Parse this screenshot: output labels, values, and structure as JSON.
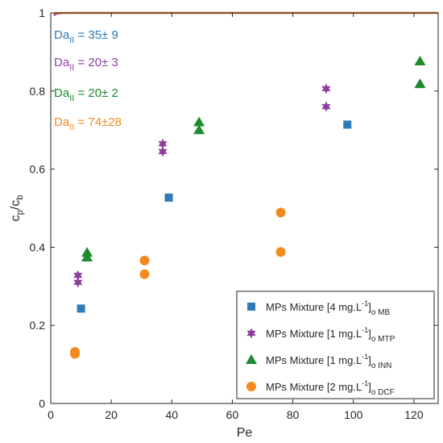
{
  "chart_data": {
    "type": "scatter",
    "xlabel": "Pe",
    "ylabel": {
      "main": "c",
      "sub1": "p",
      "slash": "/c",
      "sub2": "b"
    },
    "xlim": [
      0,
      128
    ],
    "ylim": [
      0,
      1
    ],
    "xticks": [
      0,
      20,
      40,
      60,
      80,
      100,
      120
    ],
    "yticks": [
      0,
      0.2,
      0.4,
      0.6,
      0.8,
      1
    ],
    "ytick_labels": [
      "0",
      "0.2",
      "0.4",
      "0.6",
      "0.8",
      "1"
    ],
    "legend_position": "bottom-right",
    "annotations": [
      {
        "text_main": "Da",
        "text_sub": "II",
        "text_rest": " = 35± 9",
        "color": "#2e7bb6"
      },
      {
        "text_main": "Da",
        "text_sub": "II",
        "text_rest": " = 20± 3",
        "color": "#8e3f9e"
      },
      {
        "text_main": "Da",
        "text_sub": "II",
        "text_rest": " = 20± 2",
        "color": "#1f8a2e"
      },
      {
        "text_main": "Da",
        "text_sub": "II",
        "text_rest": " = 74±28",
        "color": "#f28a1e"
      }
    ],
    "series": [
      {
        "name": "MPs Mixture [4 mg.L-1]o MB",
        "legend_main": "MPs Mixture [4 mg.L",
        "legend_sup": "-1",
        "legend_close": "]",
        "legend_sub": "o MB",
        "marker": "square",
        "color": "#2e7bb6",
        "points": [
          [
            10,
            0.243
          ],
          [
            39,
            0.527
          ],
          [
            98,
            0.714
          ]
        ],
        "curve_da": 35
      },
      {
        "name": "MPs Mixture [1 mg.L-1]o MTP",
        "legend_main": "MPs Mixture [1 mg.L",
        "legend_sup": "-1",
        "legend_close": "]",
        "legend_sub": "o MTP",
        "marker": "star",
        "color": "#8e3f9e",
        "points": [
          [
            9,
            0.31
          ],
          [
            9,
            0.328
          ],
          [
            37,
            0.645
          ],
          [
            37,
            0.665
          ],
          [
            91,
            0.76
          ],
          [
            91,
            0.806
          ]
        ],
        "curve_da": 20
      },
      {
        "name": "MPs Mixture [1 mg.L-1]o INN",
        "legend_main": "MPs Mixture [1 mg.L",
        "legend_sup": "-1",
        "legend_close": "]",
        "legend_sub": "o INN",
        "marker": "triangle",
        "color": "#1f8a2e",
        "points": [
          [
            12,
            0.374
          ],
          [
            12,
            0.386
          ],
          [
            49,
            0.7
          ],
          [
            49,
            0.72
          ],
          [
            122,
            0.818
          ],
          [
            122,
            0.876
          ]
        ],
        "curve_da": null
      },
      {
        "name": "MPs Mixture [2 mg.L-1]o DCF",
        "legend_main": "MPs Mixture [2 mg.L",
        "legend_sup": "-1",
        "legend_close": "]",
        "legend_sub": "o DCF",
        "marker": "circle",
        "color": "#f28a1e",
        "points": [
          [
            8,
            0.127
          ],
          [
            8,
            0.132
          ],
          [
            31,
            0.331
          ],
          [
            31,
            0.366
          ],
          [
            76,
            0.388
          ],
          [
            76,
            0.489
          ]
        ],
        "curve_da": 74
      }
    ]
  }
}
